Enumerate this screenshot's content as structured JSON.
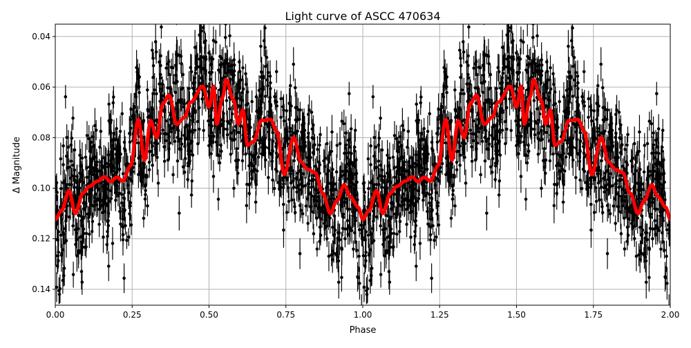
{
  "chart_data": {
    "type": "scatter",
    "title": "Light curve of ASCC 470634",
    "xlabel": "Phase",
    "ylabel": "Δ Magnitude",
    "xlim": [
      0,
      2
    ],
    "ylim": [
      0.1463,
      0.0351
    ],
    "y_inverted": true,
    "grid": true,
    "xticks": [
      "0.00",
      "0.25",
      "0.50",
      "0.75",
      "1.00",
      "1.25",
      "1.50",
      "1.75",
      "2.00"
    ],
    "yticks": [
      "0.04",
      "0.06",
      "0.08",
      "0.10",
      "0.12",
      "0.14"
    ],
    "colors": {
      "points": "#000000",
      "model": "#ff0000",
      "grid": "#b0b0b0"
    },
    "series": [
      {
        "kind": "errorbar-points",
        "description_color": "#000000"
      },
      {
        "kind": "model-line",
        "period_repeat": true,
        "x": [
          0.0,
          0.02,
          0.045,
          0.065,
          0.09,
          0.11,
          0.14,
          0.16,
          0.18,
          0.2,
          0.22,
          0.245,
          0.27,
          0.29,
          0.31,
          0.33,
          0.35,
          0.37,
          0.395,
          0.42,
          0.44,
          0.48,
          0.5,
          0.515,
          0.525,
          0.545,
          0.555,
          0.58,
          0.595,
          0.61,
          0.625,
          0.645,
          0.67,
          0.7,
          0.72,
          0.745,
          0.775,
          0.8,
          0.82,
          0.845,
          0.87,
          0.895,
          0.915,
          0.94,
          0.96,
          0.985,
          1.0
        ],
        "y": [
          0.1124,
          0.1089,
          0.101,
          0.11,
          0.102,
          0.0993,
          0.0971,
          0.0955,
          0.0974,
          0.0957,
          0.0971,
          0.0911,
          0.0728,
          0.089,
          0.0733,
          0.08,
          0.0665,
          0.0632,
          0.0747,
          0.072,
          0.066,
          0.0597,
          0.0679,
          0.0597,
          0.0747,
          0.0638,
          0.057,
          0.0651,
          0.0747,
          0.069,
          0.083,
          0.0815,
          0.0733,
          0.0728,
          0.0774,
          0.0946,
          0.08,
          0.0897,
          0.0925,
          0.0938,
          0.102,
          0.11,
          0.105,
          0.0987,
          0.1034,
          0.1075,
          0.1124
        ]
      }
    ]
  }
}
